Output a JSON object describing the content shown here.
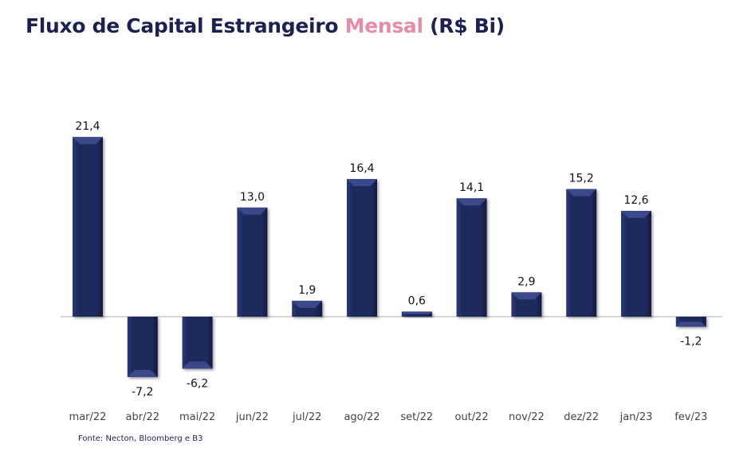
{
  "header": {
    "title_part1": "Fluxo de Capital Estrangeiro ",
    "title_accent": "Mensal",
    "title_part2": " (R$ Bi)"
  },
  "footer": {
    "source": "Fonte: Necton, Bloomberg e B3"
  },
  "colors": {
    "bar": "#1d2a5c",
    "title": "#1b2250",
    "accent": "#e58ca6"
  },
  "chart_data": {
    "type": "bar",
    "title": "Fluxo de Capital Estrangeiro Mensal (R$ Bi)",
    "categories": [
      "mar/22",
      "abr/22",
      "mai/22",
      "jun/22",
      "jul/22",
      "ago/22",
      "set/22",
      "out/22",
      "nov/22",
      "dez/22",
      "jan/23",
      "fev/23"
    ],
    "values": [
      21.4,
      -7.2,
      -6.2,
      13.0,
      1.9,
      16.4,
      0.6,
      14.1,
      2.9,
      15.2,
      12.6,
      -1.2
    ],
    "value_labels": [
      "21,4",
      "-7,2",
      "-6,2",
      "13,0",
      "1,9",
      "16,4",
      "0,6",
      "14,1",
      "2,9",
      "15,2",
      "12,6",
      "-1,2"
    ],
    "xlabel": "",
    "ylabel": "",
    "grid": false,
    "legend": "none"
  }
}
